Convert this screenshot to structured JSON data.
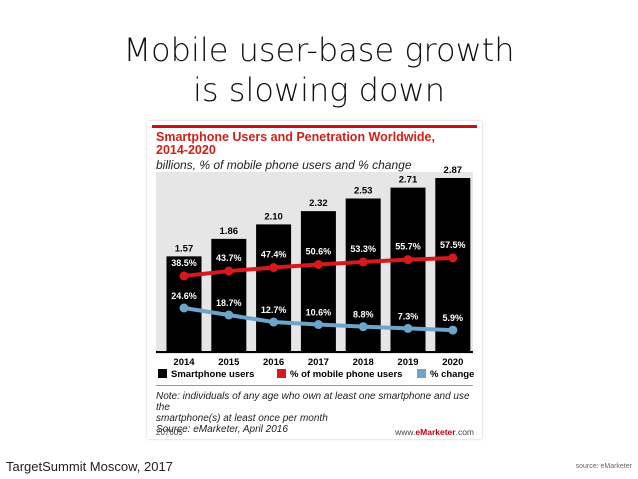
{
  "slide": {
    "title_line1": "Mobile user-base growth",
    "title_line2": "is slowing down",
    "footer_left": "TargetSummit Moscow, 2017",
    "footer_right": "source: eMarketer"
  },
  "card": {
    "title_line1": "Smartphone Users and Penetration Worldwide,",
    "title_line2": "2014-2020",
    "subtitle": "billions, % of mobile phone users and % change",
    "note_line1": "Note: individuals of any age who own at least one smartphone and use the",
    "note_line2": "smartphone(s) at least once per month",
    "note_line3": "Source: eMarketer, April 2016",
    "id": "207605",
    "brand_prefix": "www.",
    "brand_main": "eMarketer",
    "brand_suffix": ".com"
  },
  "chart_data": {
    "type": "bar",
    "categories": [
      "2014",
      "2015",
      "2016",
      "2017",
      "2018",
      "2019",
      "2020"
    ],
    "series": [
      {
        "name": "Smartphone users",
        "type": "bar",
        "color": "#000000",
        "values": [
          1.57,
          1.86,
          2.1,
          2.32,
          2.53,
          2.71,
          2.87
        ],
        "labels": [
          "1.57",
          "1.86",
          "2.10",
          "2.32",
          "2.53",
          "2.71",
          "2.87"
        ]
      },
      {
        "name": "% of mobile phone users",
        "type": "line",
        "color": "#d7191c",
        "values": [
          38.5,
          43.7,
          47.4,
          50.6,
          53.3,
          55.7,
          57.5
        ],
        "labels": [
          "38.5%",
          "43.7%",
          "47.4%",
          "50.6%",
          "53.3%",
          "55.7%",
          "57.5%"
        ]
      },
      {
        "name": "% change",
        "type": "line",
        "color": "#6ba6c8",
        "values": [
          24.6,
          18.7,
          12.7,
          10.6,
          8.8,
          7.3,
          5.9
        ],
        "labels": [
          "24.6%",
          "18.7%",
          "12.7%",
          "10.6%",
          "8.8%",
          "7.3%",
          "5.9%"
        ]
      }
    ],
    "legend": "bottom",
    "grid": false
  }
}
